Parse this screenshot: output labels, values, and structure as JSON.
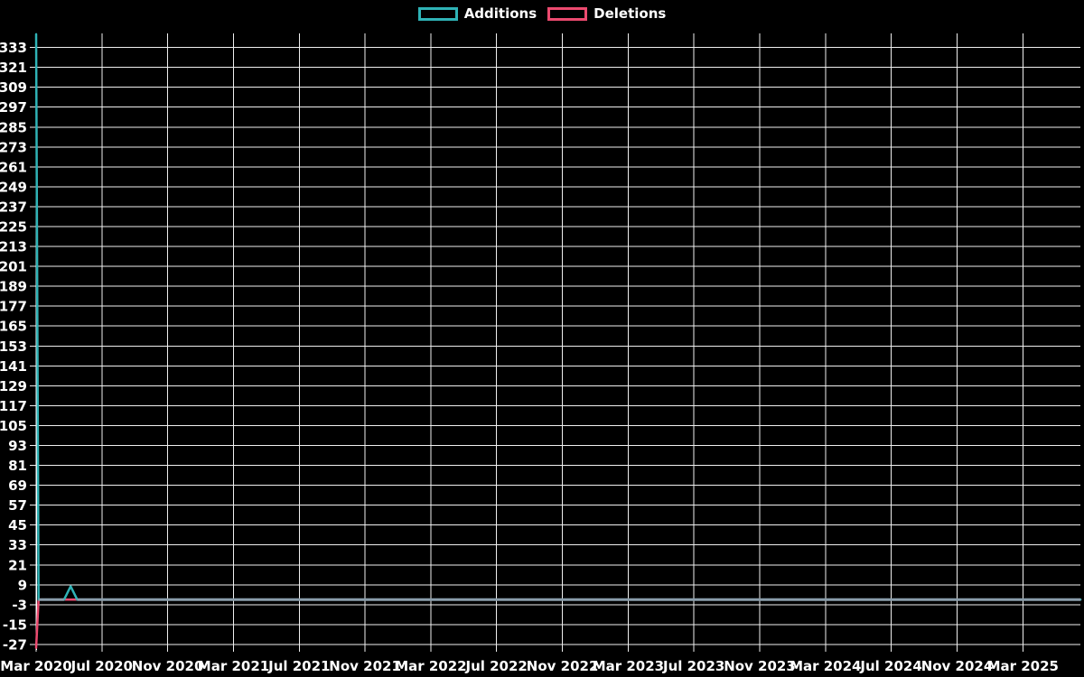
{
  "legend": {
    "items": [
      {
        "label": "Additions",
        "color": "#2fb3b6"
      },
      {
        "label": "Deletions",
        "color": "#ec4a6f"
      }
    ],
    "position": "top-center"
  },
  "chart_data": {
    "type": "line",
    "title": "",
    "xlabel": "",
    "ylabel": "",
    "x_unit": "months_since_Mar_2020",
    "x_range_months": [
      0,
      63.5
    ],
    "y_range": [
      -30.3,
      341.5
    ],
    "y_tick_step": 12,
    "grid": true,
    "background_color": "#000000",
    "grid_color": "#efefef",
    "axis_color": "#ffffff",
    "text_color": "#ffffff",
    "overlap_line_color": "#8a9dab",
    "x_ticks": [
      {
        "m": 0,
        "label": "Mar 2020"
      },
      {
        "m": 4,
        "label": "Jul 2020"
      },
      {
        "m": 8,
        "label": "Nov 2020"
      },
      {
        "m": 12,
        "label": "Mar 2021"
      },
      {
        "m": 16,
        "label": "Jul 2021"
      },
      {
        "m": 20,
        "label": "Nov 2021"
      },
      {
        "m": 24,
        "label": "Mar 2022"
      },
      {
        "m": 28,
        "label": "Jul 2022"
      },
      {
        "m": 32,
        "label": "Nov 2022"
      },
      {
        "m": 36,
        "label": "Mar 2023"
      },
      {
        "m": 40,
        "label": "Jul 2023"
      },
      {
        "m": 44,
        "label": "Nov 2023"
      },
      {
        "m": 48,
        "label": "Mar 2024"
      },
      {
        "m": 52,
        "label": "Jul 2024"
      },
      {
        "m": 56,
        "label": "Nov 2024"
      },
      {
        "m": 60,
        "label": "Mar 2025"
      }
    ],
    "y_ticks": [
      -27,
      -15,
      -3,
      9,
      21,
      33,
      45,
      57,
      69,
      81,
      93,
      105,
      117,
      129,
      141,
      153,
      165,
      177,
      189,
      201,
      213,
      225,
      237,
      249,
      261,
      273,
      285,
      297,
      309,
      321,
      333
    ],
    "series": [
      {
        "name": "Additions",
        "color": "#2fb3b6",
        "points": [
          {
            "m": 0,
            "v": 341
          },
          {
            "m": 0.15,
            "v": 0
          },
          {
            "m": 1.7,
            "v": 0
          },
          {
            "m": 2.1,
            "v": 8
          },
          {
            "m": 2.5,
            "v": 0
          },
          {
            "m": 63.5,
            "v": 0
          }
        ]
      },
      {
        "name": "Deletions",
        "color": "#ec4a6f",
        "points": [
          {
            "m": 0,
            "v": -29
          },
          {
            "m": 0.15,
            "v": 0
          },
          {
            "m": 63.5,
            "v": 0
          }
        ]
      }
    ]
  }
}
